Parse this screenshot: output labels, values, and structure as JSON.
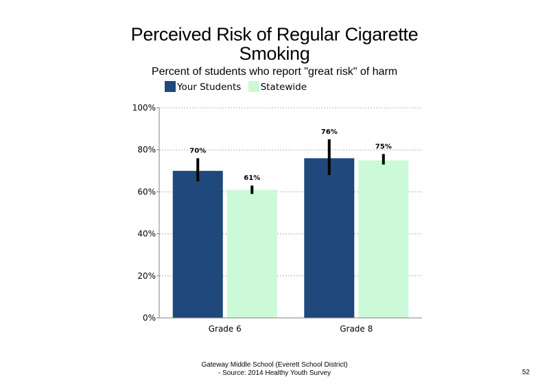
{
  "chart_data": {
    "type": "bar",
    "title": "Perceived Risk of Regular Cigarette Smoking",
    "subtitle": "Percent of students who report \"great risk\" of harm",
    "categories": [
      "Grade 6",
      "Grade 8"
    ],
    "series": [
      {
        "name": "Your Students",
        "color": "#1f497d",
        "values": [
          70,
          76
        ],
        "value_labels": [
          "70%",
          "76%"
        ],
        "error_low": [
          65,
          68
        ],
        "error_high": [
          76,
          85
        ]
      },
      {
        "name": "Statewide",
        "color": "#ccfad9",
        "values": [
          61,
          75
        ],
        "value_labels": [
          "61%",
          "75%"
        ],
        "error_low": [
          59,
          73
        ],
        "error_high": [
          63,
          78
        ]
      }
    ],
    "ylim": [
      0,
      100
    ],
    "yticks": [
      0,
      20,
      40,
      60,
      80,
      100
    ],
    "ytick_labels": [
      "0%",
      "20%",
      "40%",
      "60%",
      "80%",
      "100%"
    ],
    "grid": true,
    "legend_position": "top-left"
  },
  "footer": {
    "line1": "Gateway Middle School (Everett School District)",
    "line2": "- Source: 2014 Healthy Youth Survey",
    "page_number": "52"
  }
}
